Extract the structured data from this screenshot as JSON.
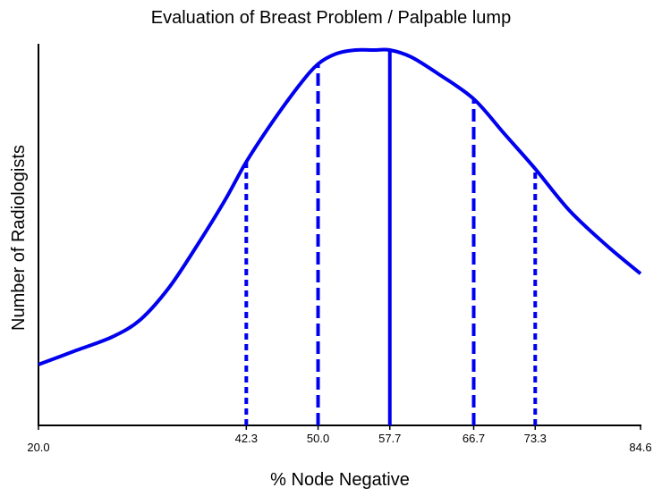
{
  "chart_data": {
    "type": "line",
    "title": "Evaluation of Breast Problem / Palpable lump",
    "xlabel": "% Node Negative",
    "ylabel": "Number of Radiologists",
    "xlim": [
      20.0,
      84.6
    ],
    "x_ticks": [
      "20.0",
      "42.3",
      "50.0",
      "57.7",
      "66.7",
      "73.3",
      "84.6"
    ],
    "y_ticks_shown": false,
    "grid": false,
    "series": [
      {
        "color": "#0000ee",
        "style": "solid",
        "x": [
          20.0,
          24.0,
          28.0,
          31.0,
          34.0,
          37.0,
          40.0,
          42.3,
          45.0,
          48.0,
          50.0,
          52.0,
          54.0,
          56.0,
          57.7,
          60.0,
          63.0,
          66.7,
          70.0,
          73.3,
          77.0,
          81.0,
          84.6
        ],
        "y": [
          0.1,
          0.14,
          0.18,
          0.23,
          0.32,
          0.44,
          0.57,
          0.68,
          0.79,
          0.9,
          0.96,
          0.99,
          1.0,
          1.0,
          1.0,
          0.98,
          0.93,
          0.86,
          0.76,
          0.66,
          0.54,
          0.44,
          0.36
        ]
      }
    ],
    "reference_lines": [
      {
        "x": 42.3,
        "style": "dotted"
      },
      {
        "x": 50.0,
        "style": "dashed"
      },
      {
        "x": 57.7,
        "style": "solid"
      },
      {
        "x": 66.7,
        "style": "dashed"
      },
      {
        "x": 73.3,
        "style": "dotted"
      }
    ],
    "colors": {
      "curve": "#0000ee",
      "axis": "#000000"
    }
  }
}
